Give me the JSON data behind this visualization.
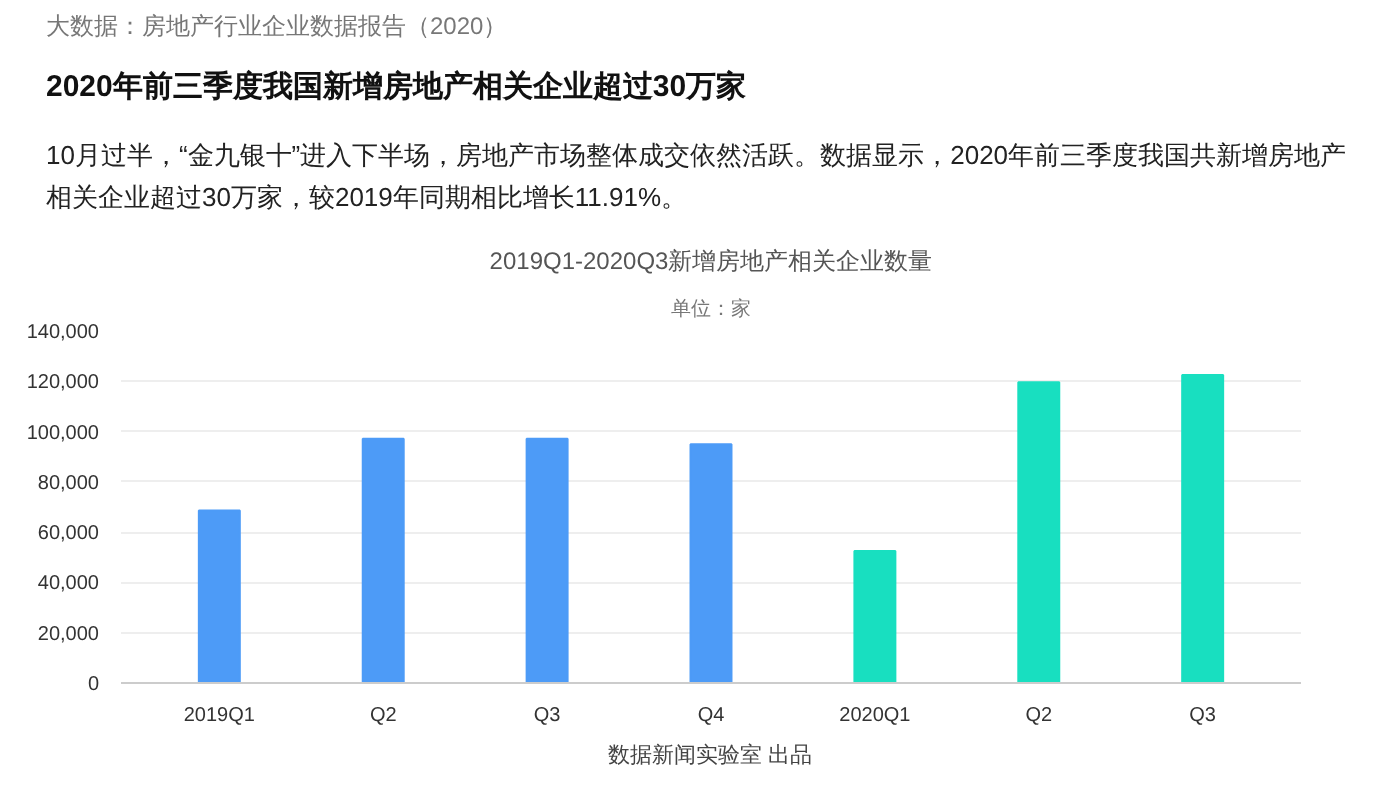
{
  "chart_data": {
    "type": "bar",
    "title": "2019Q1-2020Q3新增房地产相关企业数量",
    "subtitle": "单位：家",
    "annotations": [
      "大数据：房地产行业企业数据报告（2020）",
      "2020年前三季度我国新增房地产相关企业超过30万家",
      "10月过半，“金九银十”进入下半场，房地产市场整体成交依然活跃。数据显示，2020年前三季度我国共新增房地产相关企业超过30万家，较2019年同期相比增长11.91%。",
      "数据新闻实验室 出品"
    ],
    "categories": [
      "2019Q1",
      "Q2",
      "Q3",
      "Q4",
      "2020Q1",
      "Q2",
      "Q3"
    ],
    "values": [
      68600,
      97100,
      97100,
      95000,
      52500,
      119600,
      122500
    ],
    "colors": [
      "#4d9bf7",
      "#4d9bf7",
      "#4d9bf7",
      "#4d9bf7",
      "#18dfc0",
      "#18dfc0",
      "#18dfc0"
    ],
    "ylim": [
      0,
      140000
    ],
    "yticks": [
      {
        "value": 0,
        "label": "0"
      },
      {
        "value": 20000,
        "label": "20,000"
      },
      {
        "value": 40000,
        "label": "40,000"
      },
      {
        "value": 60000,
        "label": "60,000"
      },
      {
        "value": 80000,
        "label": "80,000"
      },
      {
        "value": 100000,
        "label": "100,000"
      },
      {
        "value": 120000,
        "label": "120,000"
      },
      {
        "value": 140000,
        "label": "140,000"
      }
    ],
    "grid": "y"
  }
}
